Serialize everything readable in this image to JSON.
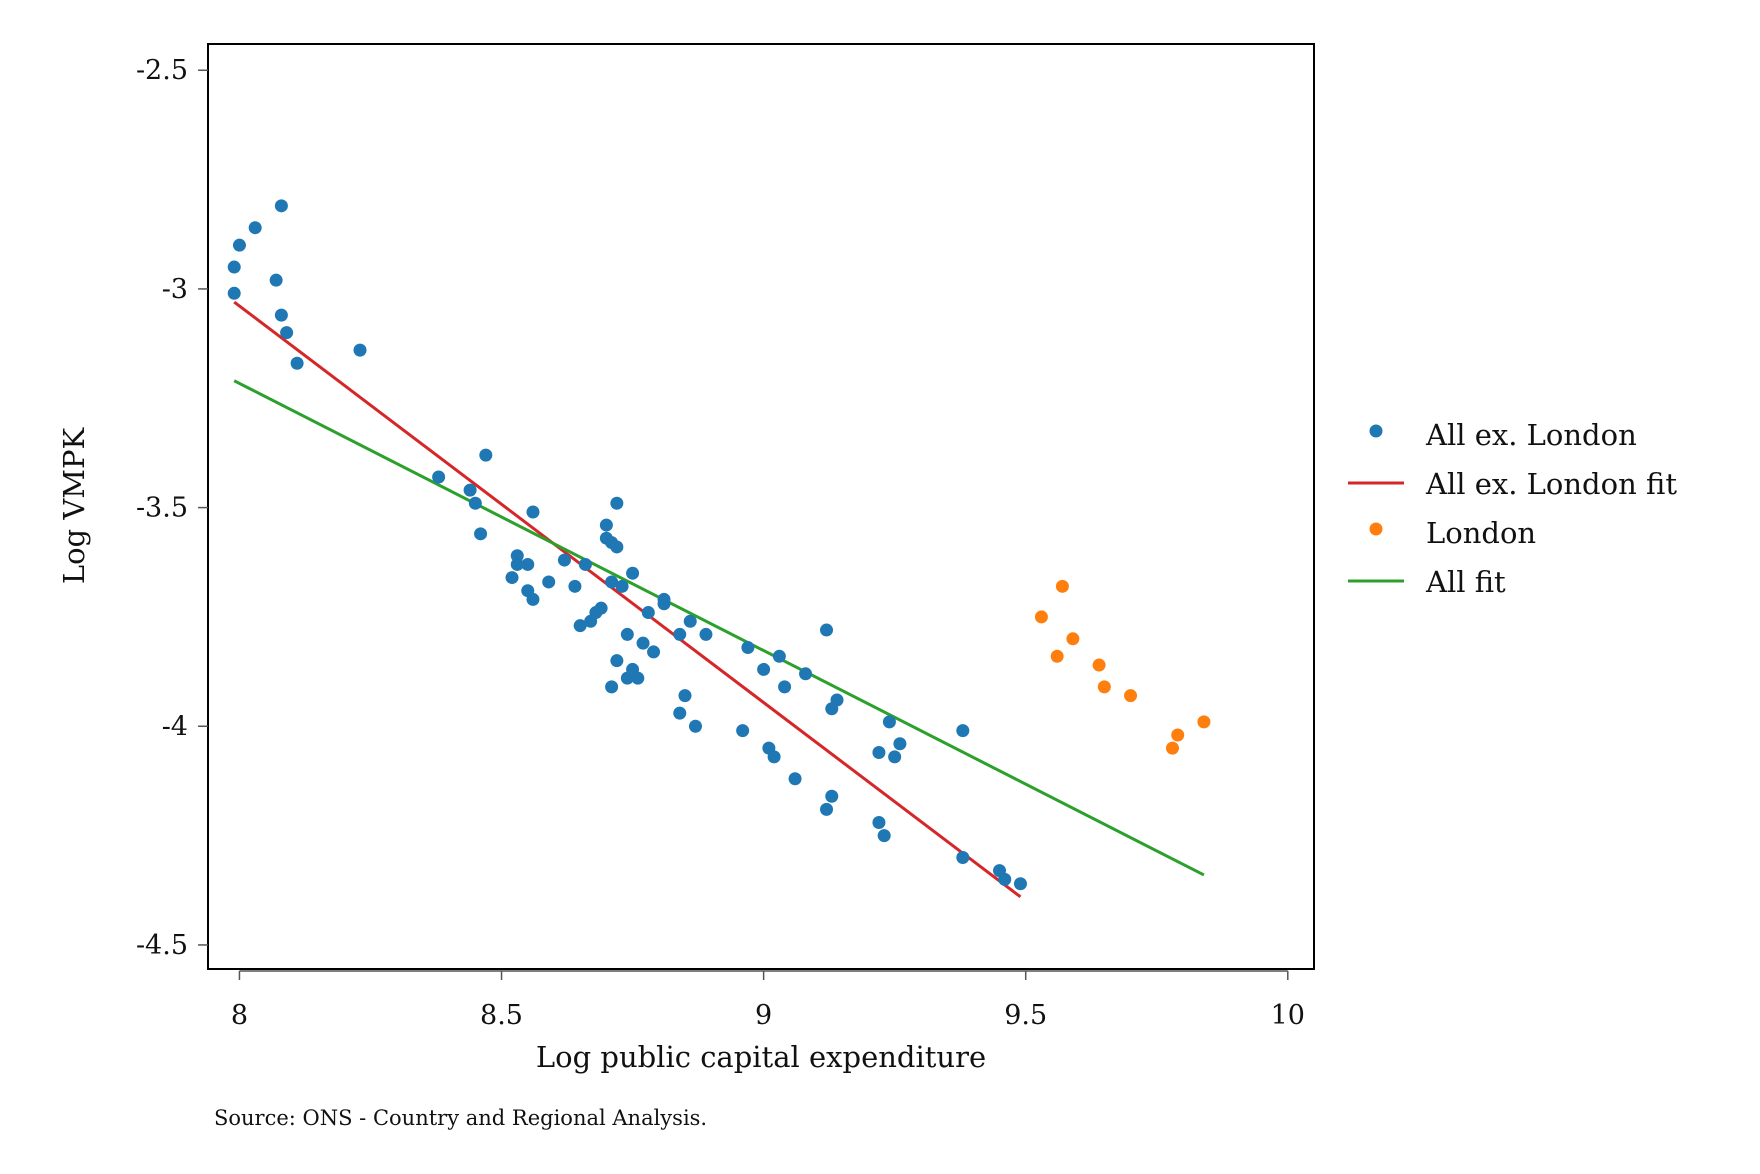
{
  "chart_data": {
    "type": "scatter",
    "xlabel": "Log public capital expenditure",
    "ylabel": "Log VMPK",
    "note": "Source: ONS - Country and Regional Analysis.",
    "xlim": [
      7.94,
      10.05
    ],
    "ylim": [
      -4.555,
      -2.44
    ],
    "x_ticks": [
      8,
      8.5,
      9,
      9.5,
      10
    ],
    "x_tick_labels": [
      "8",
      "8.5",
      "9",
      "9.5",
      "10"
    ],
    "y_ticks": [
      -2.5,
      -3,
      -3.5,
      -4,
      -4.5
    ],
    "y_tick_labels": [
      "-2.5",
      "-3",
      "-3.5",
      "-4",
      "-4.5"
    ],
    "grid": false,
    "legend_position": "right",
    "series": [
      {
        "name": "All ex. London",
        "kind": "scatter",
        "color": "#1f77b4",
        "points": [
          [
            7.99,
            -3.01
          ],
          [
            7.99,
            -2.95
          ],
          [
            8.0,
            -2.9
          ],
          [
            8.03,
            -2.86
          ],
          [
            8.07,
            -2.98
          ],
          [
            8.08,
            -2.81
          ],
          [
            8.08,
            -3.06
          ],
          [
            8.09,
            -3.1
          ],
          [
            8.11,
            -3.17
          ],
          [
            8.23,
            -3.14
          ],
          [
            8.38,
            -3.43
          ],
          [
            8.44,
            -3.46
          ],
          [
            8.45,
            -3.49
          ],
          [
            8.46,
            -3.56
          ],
          [
            8.47,
            -3.38
          ],
          [
            8.52,
            -3.66
          ],
          [
            8.53,
            -3.61
          ],
          [
            8.53,
            -3.63
          ],
          [
            8.55,
            -3.63
          ],
          [
            8.55,
            -3.69
          ],
          [
            8.56,
            -3.71
          ],
          [
            8.56,
            -3.51
          ],
          [
            8.59,
            -3.67
          ],
          [
            8.62,
            -3.62
          ],
          [
            8.64,
            -3.68
          ],
          [
            8.65,
            -3.77
          ],
          [
            8.66,
            -3.63
          ],
          [
            8.67,
            -3.76
          ],
          [
            8.68,
            -3.74
          ],
          [
            8.69,
            -3.73
          ],
          [
            8.7,
            -3.57
          ],
          [
            8.7,
            -3.54
          ],
          [
            8.71,
            -3.58
          ],
          [
            8.71,
            -3.67
          ],
          [
            8.71,
            -3.91
          ],
          [
            8.72,
            -3.85
          ],
          [
            8.72,
            -3.59
          ],
          [
            8.72,
            -3.49
          ],
          [
            8.73,
            -3.68
          ],
          [
            8.74,
            -3.79
          ],
          [
            8.74,
            -3.89
          ],
          [
            8.75,
            -3.65
          ],
          [
            8.75,
            -3.87
          ],
          [
            8.76,
            -3.89
          ],
          [
            8.77,
            -3.81
          ],
          [
            8.78,
            -3.74
          ],
          [
            8.79,
            -3.83
          ],
          [
            8.81,
            -3.72
          ],
          [
            8.81,
            -3.71
          ],
          [
            8.84,
            -3.97
          ],
          [
            8.84,
            -3.79
          ],
          [
            8.85,
            -3.93
          ],
          [
            8.86,
            -3.76
          ],
          [
            8.87,
            -4.0
          ],
          [
            8.89,
            -3.79
          ],
          [
            8.96,
            -4.01
          ],
          [
            8.97,
            -3.82
          ],
          [
            9.0,
            -3.87
          ],
          [
            9.01,
            -4.05
          ],
          [
            9.02,
            -4.07
          ],
          [
            9.03,
            -3.84
          ],
          [
            9.04,
            -3.91
          ],
          [
            9.06,
            -4.12
          ],
          [
            9.08,
            -3.88
          ],
          [
            9.12,
            -4.19
          ],
          [
            9.12,
            -3.78
          ],
          [
            9.13,
            -4.16
          ],
          [
            9.13,
            -3.96
          ],
          [
            9.14,
            -3.94
          ],
          [
            9.22,
            -4.06
          ],
          [
            9.22,
            -4.22
          ],
          [
            9.23,
            -4.25
          ],
          [
            9.24,
            -3.99
          ],
          [
            9.25,
            -4.07
          ],
          [
            9.26,
            -4.04
          ],
          [
            9.38,
            -4.3
          ],
          [
            9.38,
            -4.01
          ],
          [
            9.45,
            -4.33
          ],
          [
            9.46,
            -4.35
          ],
          [
            9.49,
            -4.36
          ]
        ]
      },
      {
        "name": "All ex. London fit",
        "kind": "line",
        "color": "#d62728",
        "points": [
          [
            7.99,
            -3.03
          ],
          [
            9.49,
            -4.39
          ]
        ]
      },
      {
        "name": "London",
        "kind": "scatter",
        "color": "#ff7f0e",
        "points": [
          [
            9.53,
            -3.75
          ],
          [
            9.56,
            -3.84
          ],
          [
            9.57,
            -3.68
          ],
          [
            9.59,
            -3.8
          ],
          [
            9.64,
            -3.86
          ],
          [
            9.65,
            -3.91
          ],
          [
            9.7,
            -3.93
          ],
          [
            9.78,
            -4.05
          ],
          [
            9.79,
            -4.02
          ],
          [
            9.84,
            -3.99
          ]
        ]
      },
      {
        "name": "All fit",
        "kind": "line",
        "color": "#2ca02c",
        "points": [
          [
            7.99,
            -3.21
          ],
          [
            9.84,
            -4.34
          ]
        ]
      }
    ]
  }
}
